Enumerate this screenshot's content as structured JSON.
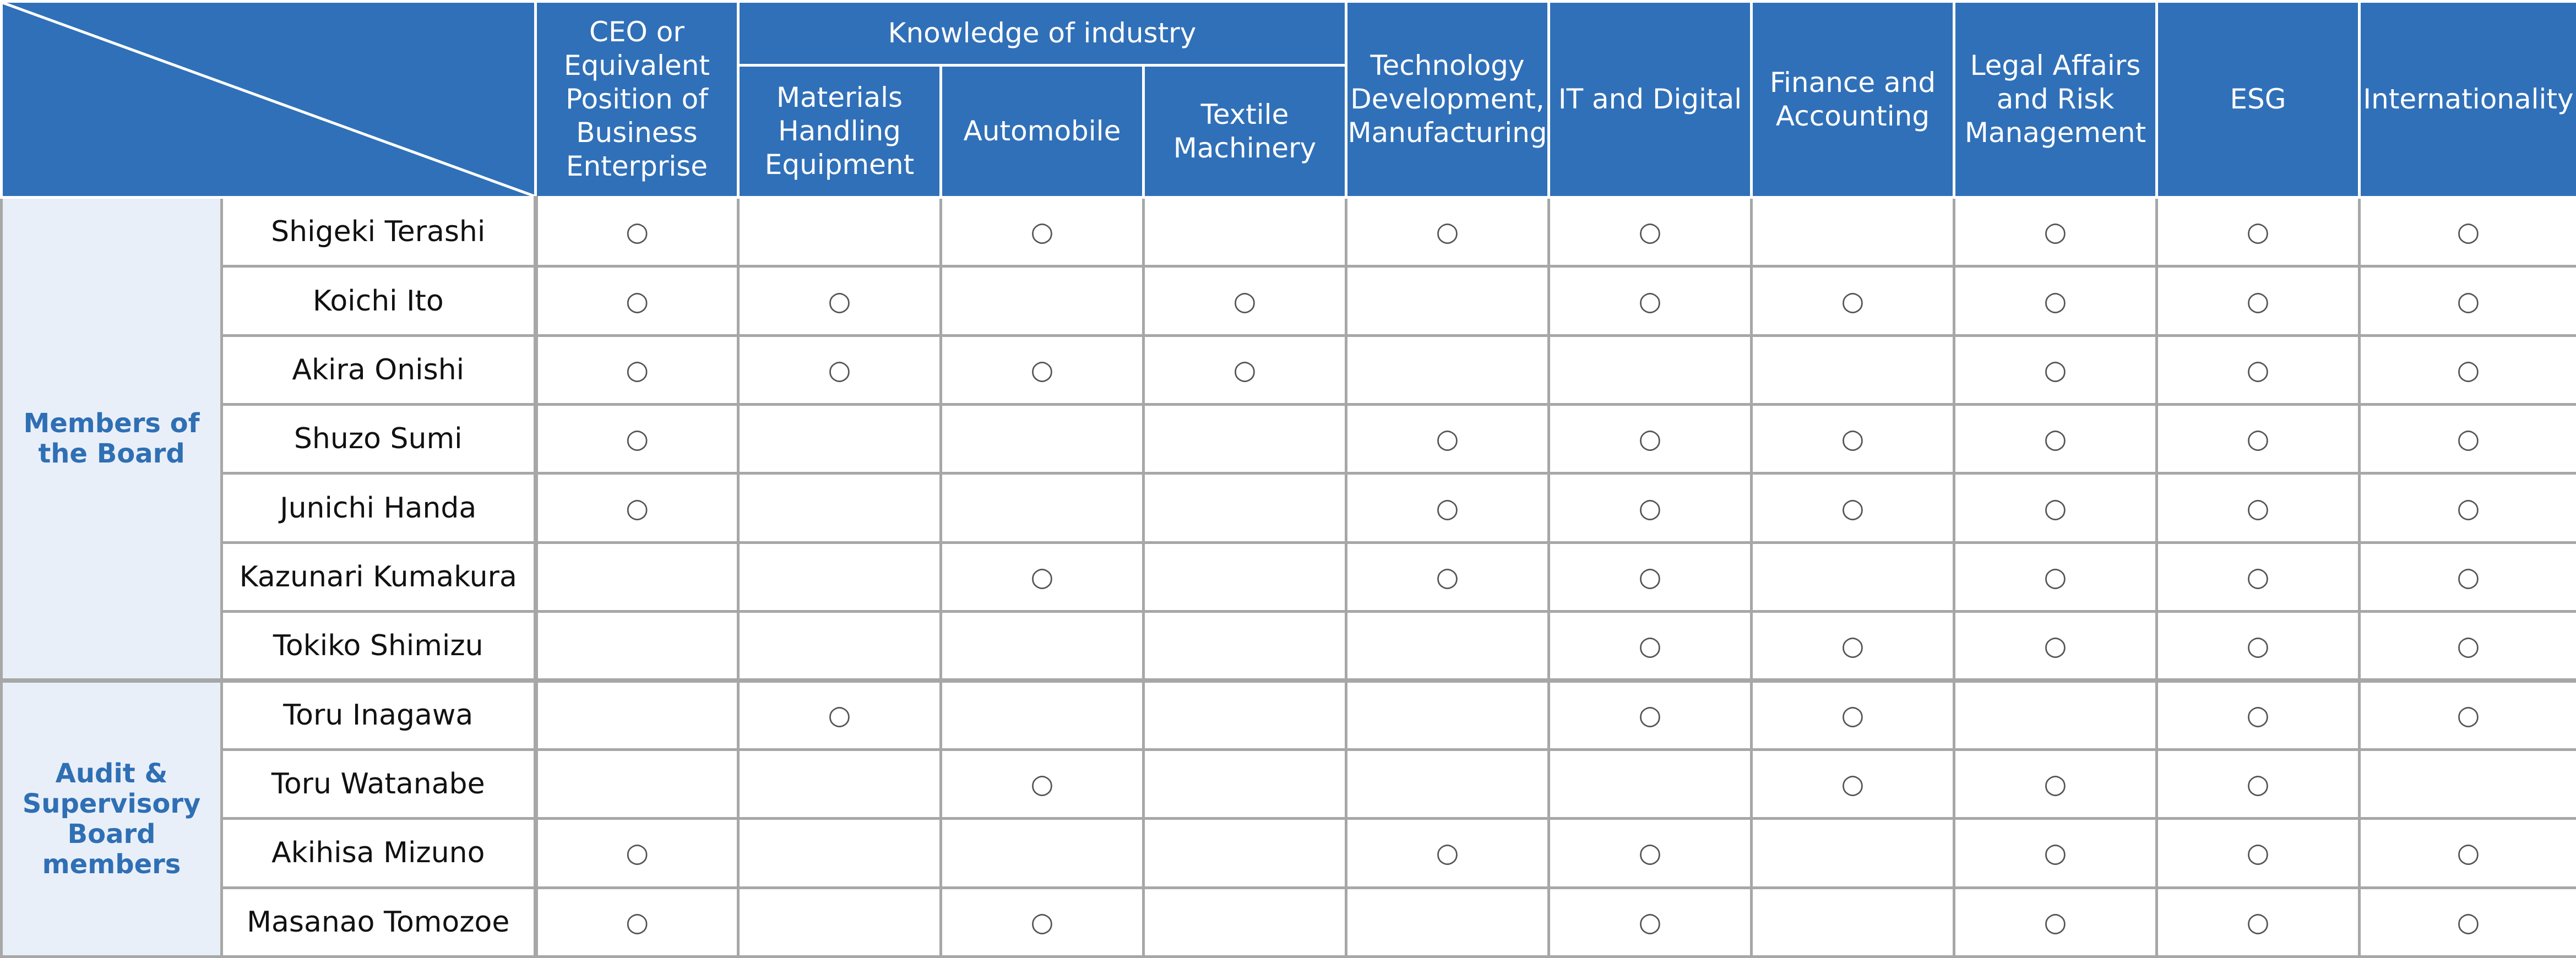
{
  "header": {
    "ceo": "CEO or Equivalent Position of Business Enterprise",
    "knowledge_group": "Knowledge of industry",
    "materials": "Materials Handling Equipment",
    "automobile": "Automobile",
    "textile": "Textile Machinery",
    "technology": "Technology Development, Manufacturing",
    "it": "IT and Digital",
    "finance": "Finance and Accounting",
    "legal": "Legal Affairs and Risk Management",
    "esg": "ESG",
    "international": "Internationality"
  },
  "mark_symbol": "○",
  "groups": [
    {
      "label": "Members of the Board",
      "rows": [
        {
          "name": "Shigeki Terashi",
          "marks": [
            1,
            0,
            1,
            0,
            1,
            1,
            0,
            1,
            1,
            1
          ]
        },
        {
          "name": "Koichi Ito",
          "marks": [
            1,
            1,
            0,
            1,
            0,
            1,
            1,
            1,
            1,
            1
          ]
        },
        {
          "name": "Akira Onishi",
          "marks": [
            1,
            1,
            1,
            1,
            0,
            0,
            0,
            1,
            1,
            1
          ]
        },
        {
          "name": "Shuzo Sumi",
          "marks": [
            1,
            0,
            0,
            0,
            1,
            1,
            1,
            1,
            1,
            1
          ]
        },
        {
          "name": "Junichi Handa",
          "marks": [
            1,
            0,
            0,
            0,
            1,
            1,
            1,
            1,
            1,
            1
          ]
        },
        {
          "name": "Kazunari Kumakura",
          "marks": [
            0,
            0,
            1,
            0,
            1,
            1,
            0,
            1,
            1,
            1
          ]
        },
        {
          "name": "Tokiko Shimizu",
          "marks": [
            0,
            0,
            0,
            0,
            0,
            1,
            1,
            1,
            1,
            1
          ]
        }
      ]
    },
    {
      "label": "Audit & Supervisory Board members",
      "rows": [
        {
          "name": "Toru Inagawa",
          "marks": [
            0,
            1,
            0,
            0,
            0,
            1,
            1,
            0,
            1,
            1
          ]
        },
        {
          "name": "Toru Watanabe",
          "marks": [
            0,
            0,
            1,
            0,
            0,
            0,
            1,
            1,
            1,
            0
          ]
        },
        {
          "name": "Akihisa Mizuno",
          "marks": [
            1,
            0,
            0,
            0,
            1,
            1,
            0,
            1,
            1,
            1
          ]
        },
        {
          "name": "Masanao Tomozoe",
          "marks": [
            1,
            0,
            1,
            0,
            0,
            1,
            0,
            1,
            1,
            1
          ]
        }
      ]
    }
  ]
}
